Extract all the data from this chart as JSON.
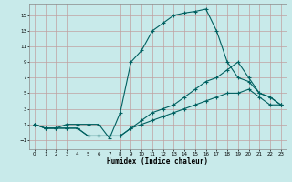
{
  "xlabel": "Humidex (Indice chaleur)",
  "bg_color": "#c8eaea",
  "grid_color": "#c0a0a0",
  "line_color": "#006060",
  "xlim": [
    -0.5,
    23.5
  ],
  "ylim": [
    -2.2,
    16.5
  ],
  "xticks": [
    0,
    1,
    2,
    3,
    4,
    5,
    6,
    7,
    8,
    9,
    10,
    11,
    12,
    13,
    14,
    15,
    16,
    17,
    18,
    19,
    20,
    21,
    22,
    23
  ],
  "yticks": [
    -1,
    1,
    3,
    5,
    7,
    9,
    11,
    13,
    15
  ],
  "line1_x": [
    0,
    1,
    2,
    3,
    4,
    5,
    6,
    7,
    8,
    9,
    10,
    11,
    12,
    13,
    14,
    15,
    16,
    17,
    18,
    19,
    20,
    21,
    22,
    23
  ],
  "line1_y": [
    1,
    0.5,
    0.5,
    1,
    1,
    1,
    1,
    -0.8,
    2.5,
    9,
    10.5,
    13,
    14,
    15,
    15.3,
    15.5,
    15.8,
    13,
    9,
    7,
    6.5,
    5,
    4.5,
    3.5
  ],
  "line2_x": [
    0,
    1,
    2,
    3,
    4,
    5,
    6,
    7,
    8,
    9,
    10,
    11,
    12,
    13,
    14,
    15,
    16,
    17,
    18,
    19,
    20,
    21,
    22,
    23
  ],
  "line2_y": [
    1,
    0.5,
    0.5,
    0.5,
    0.5,
    -0.5,
    -0.5,
    -0.5,
    -0.5,
    0.5,
    1.5,
    2.5,
    3,
    3.5,
    4.5,
    5.5,
    6.5,
    7,
    8,
    9,
    7,
    5,
    4.5,
    3.5
  ],
  "line3_x": [
    0,
    1,
    2,
    3,
    4,
    5,
    6,
    7,
    8,
    9,
    10,
    11,
    12,
    13,
    14,
    15,
    16,
    17,
    18,
    19,
    20,
    21,
    22,
    23
  ],
  "line3_y": [
    1,
    0.5,
    0.5,
    0.5,
    0.5,
    -0.5,
    -0.5,
    -0.5,
    -0.5,
    0.5,
    1,
    1.5,
    2,
    2.5,
    3,
    3.5,
    4,
    4.5,
    5,
    5,
    5.5,
    4.5,
    3.5,
    3.5
  ],
  "figwidth": 3.2,
  "figheight": 2.0,
  "dpi": 100
}
